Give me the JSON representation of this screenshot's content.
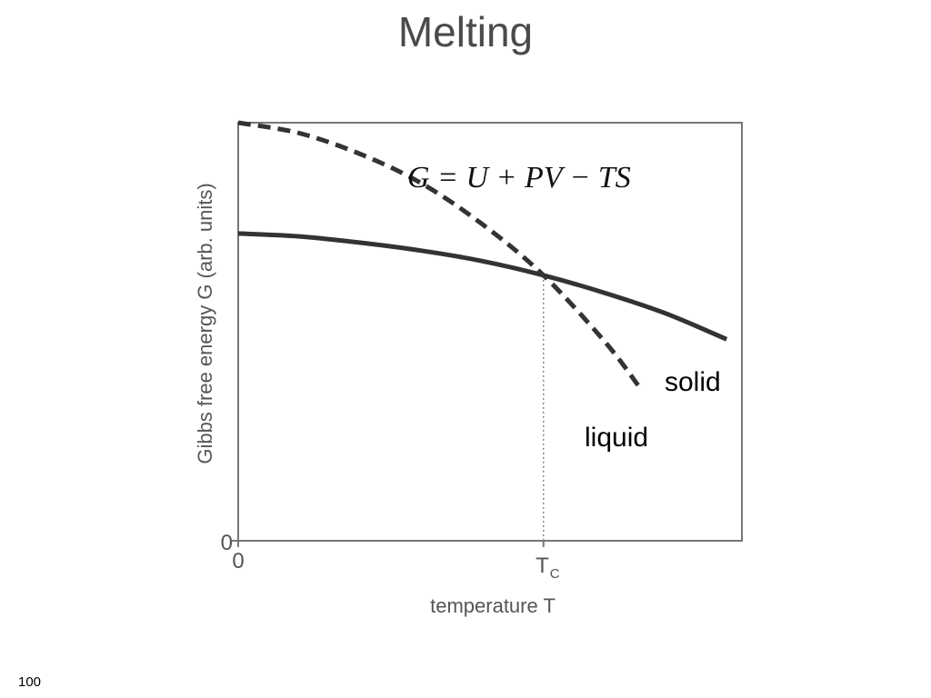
{
  "slide": {
    "title": "Melting",
    "page_number": "100"
  },
  "chart_data": {
    "type": "line",
    "title": "",
    "equation": "G = U + PV − TS",
    "xlabel": "temperature T",
    "ylabel": "Gibbs free energy G (arb. units)",
    "x_ticks": [
      "0",
      "T"
    ],
    "x_tick_subscript": "C",
    "y_ticks": [
      "0"
    ],
    "xlim": [
      0,
      1.65
    ],
    "ylim": [
      0,
      1
    ],
    "tc": 1.0,
    "grid": false,
    "series": [
      {
        "name": "solid",
        "style": "solid",
        "x": [
          0,
          0.2,
          0.4,
          0.6,
          0.8,
          1.0,
          1.2,
          1.4,
          1.6
        ],
        "y": [
          0.735,
          0.728,
          0.713,
          0.694,
          0.669,
          0.635,
          0.593,
          0.544,
          0.482
        ]
      },
      {
        "name": "liquid",
        "style": "dashed",
        "x": [
          0,
          0.2,
          0.4,
          0.6,
          0.8,
          1.0,
          1.2,
          1.31
        ],
        "y": [
          1.0,
          0.975,
          0.925,
          0.855,
          0.757,
          0.635,
          0.477,
          0.372
        ]
      }
    ]
  }
}
